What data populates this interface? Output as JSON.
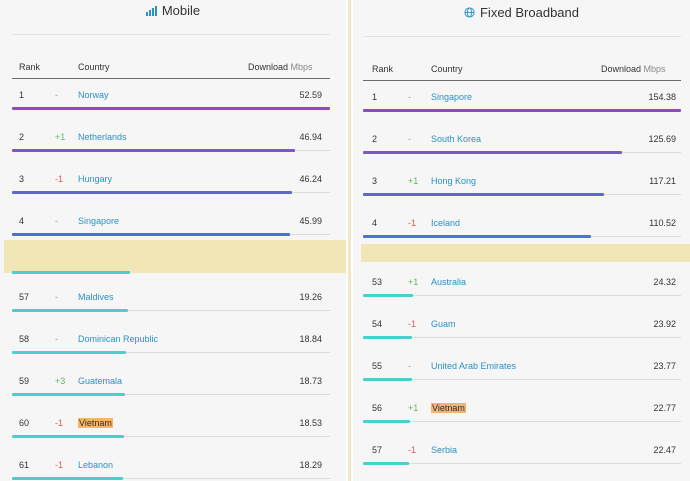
{
  "colors": {
    "purple": "#8f4ac3",
    "violet": "#7b58c9",
    "indigo": "#5f67cf",
    "blue": "#4e72d4",
    "teal": "#48d0cd",
    "highlight": "#f4b46b",
    "band": "#f2e5b6",
    "up": "#5cb85c",
    "down": "#e05555",
    "link": "#2a91c6"
  },
  "mobile": {
    "title": "Mobile",
    "icon": "signal-bars-icon",
    "headers": {
      "rank": "Rank",
      "country": "Country",
      "download": "Download",
      "unit": "Mbps"
    },
    "top_rows": [
      {
        "rank": "1",
        "change": "-",
        "country": "Norway",
        "value": "52.59",
        "fill": 1.0,
        "color": "#8f4ac3"
      },
      {
        "rank": "2",
        "change": "+1",
        "country": "Netherlands",
        "value": "46.94",
        "fill": 0.89,
        "color": "#7b58c9"
      },
      {
        "rank": "3",
        "change": "-1",
        "country": "Hungary",
        "value": "46.24",
        "fill": 0.88,
        "color": "#5f67cf"
      },
      {
        "rank": "4",
        "change": "-",
        "country": "Singapore",
        "value": "45.99",
        "fill": 0.875,
        "color": "#4e6fd2"
      }
    ],
    "bottom_rows": [
      {
        "rank": "57",
        "change": "-",
        "country": "Maldives",
        "value": "19.26",
        "fill": 0.366,
        "color": "#48d0cd"
      },
      {
        "rank": "58",
        "change": "-",
        "country": "Dominican Republic",
        "value": "18.84",
        "fill": 0.358,
        "color": "#48d0cd"
      },
      {
        "rank": "59",
        "change": "+3",
        "country": "Guatemala",
        "value": "18.73",
        "fill": 0.356,
        "color": "#48d0cd"
      },
      {
        "rank": "60",
        "change": "-1",
        "country": "Vietnam",
        "value": "18.53",
        "fill": 0.352,
        "color": "#48d0cd",
        "highlight": true
      },
      {
        "rank": "61",
        "change": "-1",
        "country": "Lebanon",
        "value": "18.29",
        "fill": 0.348,
        "color": "#48d0cd"
      }
    ]
  },
  "broadband": {
    "title": "Fixed Broadband",
    "icon": "globe-icon",
    "headers": {
      "rank": "Rank",
      "country": "Country",
      "download": "Download",
      "unit": "Mbps"
    },
    "top_rows": [
      {
        "rank": "1",
        "change": "-",
        "country": "Singapore",
        "value": "154.38",
        "fill": 1.0,
        "color": "#8f4ac3"
      },
      {
        "rank": "2",
        "change": "-",
        "country": "South Korea",
        "value": "125.69",
        "fill": 0.814,
        "color": "#7b58c9"
      },
      {
        "rank": "3",
        "change": "+1",
        "country": "Hong Kong",
        "value": "117.21",
        "fill": 0.759,
        "color": "#5f67cf"
      },
      {
        "rank": "4",
        "change": "-1",
        "country": "Iceland",
        "value": "110.52",
        "fill": 0.716,
        "color": "#4e72d4"
      }
    ],
    "bottom_rows": [
      {
        "rank": "53",
        "change": "+1",
        "country": "Australia",
        "value": "24.32",
        "fill": 0.158,
        "color": "#48d0cd"
      },
      {
        "rank": "54",
        "change": "-1",
        "country": "Guam",
        "value": "23.92",
        "fill": 0.155,
        "color": "#48d0cd"
      },
      {
        "rank": "55",
        "change": "-",
        "country": "United Arab Emirates",
        "value": "23.77",
        "fill": 0.154,
        "color": "#48d0cd"
      },
      {
        "rank": "56",
        "change": "+1",
        "country": "Vietnam",
        "value": "22.77",
        "fill": 0.147,
        "color": "#48d0cd",
        "highlight": true
      },
      {
        "rank": "57",
        "change": "-1",
        "country": "Serbia",
        "value": "22.47",
        "fill": 0.146,
        "color": "#48d0cd"
      }
    ]
  }
}
